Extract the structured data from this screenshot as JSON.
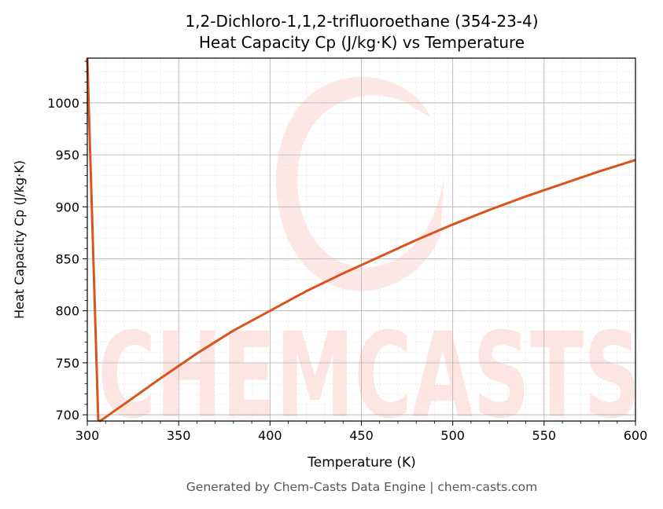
{
  "chart_data": {
    "type": "line",
    "title": "1,2-Dichloro-1,1,2-trifluoroethane (354-23-4)",
    "subtitle": "Heat Capacity Cp (J/kg·K) vs Temperature",
    "xlabel": "Temperature (K)",
    "ylabel": "Heat Capacity Cp (J/kg·K)",
    "xlim": [
      300,
      600
    ],
    "ylim": [
      694,
      1043
    ],
    "xticks": [
      300,
      350,
      400,
      450,
      500,
      550,
      600
    ],
    "yticks": [
      700,
      750,
      800,
      850,
      900,
      950,
      1000
    ],
    "grid": true,
    "line_color": "#d9541f",
    "watermark": "CHEMCASTS",
    "watermark_color": "#fde0dc",
    "series": [
      {
        "x": [
          300,
          306,
          307,
          320,
          340,
          360,
          380,
          400,
          420,
          440,
          460,
          480,
          500,
          520,
          540,
          560,
          580,
          600
        ],
        "y": [
          1043,
          695,
          694,
          710,
          735,
          759,
          781,
          800,
          819,
          836,
          852,
          868,
          883,
          897,
          910,
          922,
          934,
          945
        ]
      }
    ]
  },
  "footer": "Generated by Chem-Casts Data Engine | chem-casts.com"
}
